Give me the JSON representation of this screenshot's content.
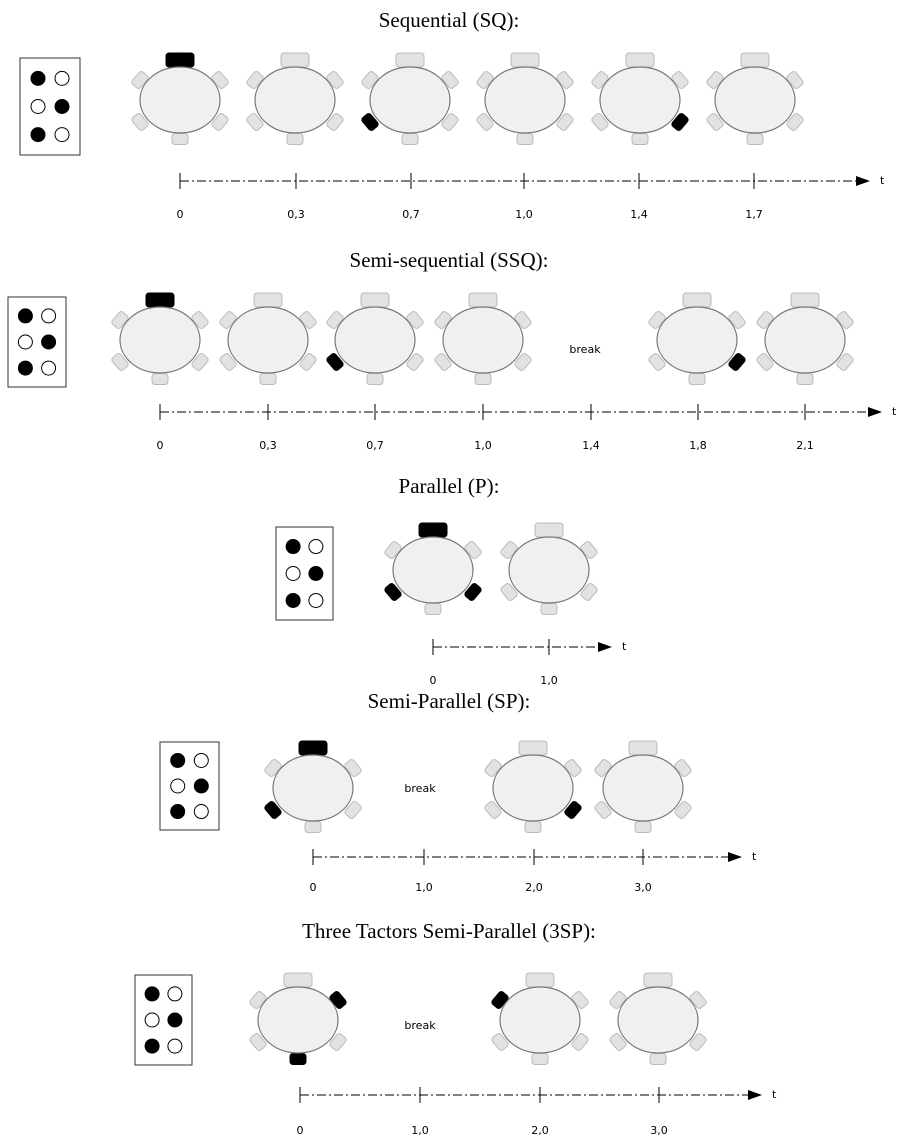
{
  "sections": [
    {
      "title": "Sequential (SQ):",
      "ticks": [
        "0",
        "0,3",
        "0,7",
        "1,0",
        "1,4",
        "1,7"
      ],
      "axis_label": "t"
    },
    {
      "title": "Semi-sequential (SSQ):",
      "break": "break",
      "ticks": [
        "0",
        "0,3",
        "0,7",
        "1,0",
        "1,4",
        "1,8",
        "2,1"
      ],
      "axis_label": "t"
    },
    {
      "title": "Parallel (P):",
      "ticks": [
        "0",
        "1,0"
      ],
      "axis_label": "t"
    },
    {
      "title": "Semi-Parallel (SP):",
      "break": "break",
      "ticks": [
        "0",
        "1,0",
        "2,0",
        "3,0"
      ],
      "axis_label": "t"
    },
    {
      "title": "Three Tactors Semi-Parallel (3SP):",
      "break": "break",
      "ticks": [
        "0",
        "1,0",
        "2,0",
        "3,0"
      ],
      "axis_label": "t"
    }
  ]
}
